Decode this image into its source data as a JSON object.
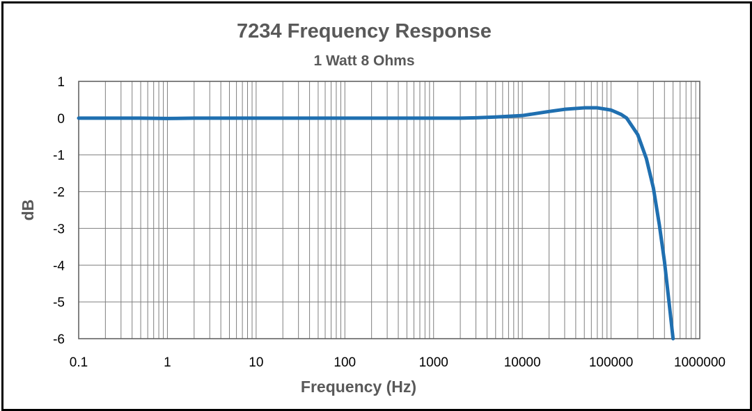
{
  "chart_data": {
    "type": "line",
    "title": "7234 Frequency Response",
    "subtitle": "1 Watt 8 Ohms",
    "xlabel": "Frequency (Hz)",
    "ylabel": "dB",
    "x_scale": "log",
    "xlim": [
      0.1,
      1000000
    ],
    "ylim": [
      -6,
      1
    ],
    "x_tick_labels": [
      "0.1",
      "1",
      "10",
      "100",
      "1000",
      "10000",
      "100000",
      "1000000"
    ],
    "y_tick_labels": [
      "1",
      "0",
      "-1",
      "-2",
      "-3",
      "-4",
      "-5",
      "-6"
    ],
    "grid": true,
    "legend": "none",
    "line_color": "#1F6FB0",
    "series": [
      {
        "x": [
          0.1,
          0.2,
          0.5,
          1,
          2,
          5,
          10,
          20,
          50,
          100,
          200,
          500,
          1000,
          2000,
          3000,
          5000,
          10000,
          20000,
          30000,
          50000,
          70000,
          100000,
          130000,
          150000,
          200000,
          250000,
          300000,
          350000,
          400000,
          450000,
          500000
        ],
        "y": [
          0.0,
          0.0,
          0.0,
          -0.01,
          0.0,
          0.0,
          0.0,
          0.0,
          0.0,
          0.0,
          0.0,
          0.0,
          0.0,
          0.0,
          0.01,
          0.03,
          0.07,
          0.18,
          0.24,
          0.28,
          0.28,
          0.22,
          0.1,
          0.0,
          -0.45,
          -1.1,
          -1.9,
          -2.9,
          -3.9,
          -5.0,
          -6.0
        ]
      }
    ]
  }
}
